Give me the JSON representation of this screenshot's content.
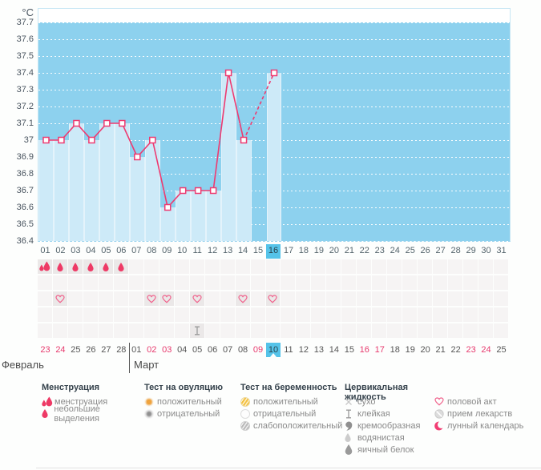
{
  "unit_label": "°C",
  "axis_ticks": [
    "37.7",
    "37.6",
    "37.5",
    "37.4",
    "37.3",
    "37.2",
    "37.1",
    "37",
    "36.9",
    "36.8",
    "36.7",
    "36.6",
    "36.5",
    "36.4"
  ],
  "colors": {
    "chart_blue": "#8dd1ee",
    "bar_blue": "#cdeaf8",
    "selected_blue": "#55c3e9",
    "line_pink": "#ee3a70",
    "weekend_pink": "#e73a6e",
    "heart_pink": "#f0618b",
    "drop_pink": "#ee3a66",
    "gray_icon": "#9a9a9a"
  },
  "chart_data": {
    "type": "line",
    "ylabel": "°C",
    "ylim": [
      36.4,
      37.7
    ],
    "y_step": 0.1,
    "grid": "horizontal-dotted",
    "x_labels": [
      "01",
      "02",
      "03",
      "04",
      "05",
      "06",
      "07",
      "08",
      "09",
      "10",
      "11",
      "12",
      "13",
      "14",
      "15",
      "16",
      "17",
      "18",
      "19",
      "20",
      "21",
      "22",
      "23",
      "24",
      "25",
      "26",
      "27",
      "28",
      "29",
      "30",
      "31"
    ],
    "series": [
      {
        "name": "measured-temperature",
        "style": "solid",
        "points": [
          [
            1,
            37.0
          ],
          [
            2,
            37.0
          ],
          [
            3,
            37.1
          ],
          [
            4,
            37.0
          ],
          [
            5,
            37.1
          ],
          [
            6,
            37.1
          ],
          [
            7,
            36.9
          ],
          [
            8,
            37.0
          ],
          [
            9,
            36.6
          ],
          [
            10,
            36.7
          ],
          [
            11,
            36.7
          ],
          [
            12,
            36.7
          ],
          [
            13,
            37.4
          ],
          [
            14,
            37.0
          ]
        ]
      },
      {
        "name": "projected-temperature",
        "style": "dashed",
        "points": [
          [
            14,
            37.0
          ],
          [
            16,
            37.4
          ]
        ]
      }
    ],
    "selected_day": 16
  },
  "symbol_rows": [
    {
      "name": "menstruation",
      "cells": {
        "1": "drop-heavy",
        "2": "drop-light",
        "3": "drop-light",
        "4": "drop-light",
        "5": "drop-light",
        "6": "drop-light"
      }
    },
    {
      "name": "ovulation-tests",
      "cells": {}
    },
    {
      "name": "intercourse",
      "cells": {
        "2": "heart",
        "8": "heart",
        "9": "heart",
        "11": "heart",
        "14": "heart",
        "16": "heart"
      }
    },
    {
      "name": "pregnancy-tests",
      "cells": {}
    },
    {
      "name": "cervical-fluid",
      "cells": {
        "11": "sticky"
      }
    }
  ],
  "calendar": {
    "months": [
      {
        "name": "Февраль"
      },
      {
        "name": "Март"
      }
    ],
    "dates": [
      {
        "d": "23",
        "m": 0,
        "weekend": true
      },
      {
        "d": "24",
        "m": 0,
        "weekend": true
      },
      {
        "d": "25",
        "m": 0
      },
      {
        "d": "26",
        "m": 0
      },
      {
        "d": "27",
        "m": 0
      },
      {
        "d": "28",
        "m": 0
      },
      {
        "d": "01",
        "m": 1
      },
      {
        "d": "02",
        "m": 1,
        "weekend": true
      },
      {
        "d": "03",
        "m": 1,
        "weekend": true
      },
      {
        "d": "04",
        "m": 1
      },
      {
        "d": "05",
        "m": 1
      },
      {
        "d": "06",
        "m": 1
      },
      {
        "d": "07",
        "m": 1
      },
      {
        "d": "08",
        "m": 1
      },
      {
        "d": "09",
        "m": 1,
        "weekend": true
      },
      {
        "d": "10",
        "m": 1,
        "today": true
      },
      {
        "d": "11",
        "m": 1
      },
      {
        "d": "12",
        "m": 1
      },
      {
        "d": "13",
        "m": 1
      },
      {
        "d": "14",
        "m": 1
      },
      {
        "d": "15",
        "m": 1
      },
      {
        "d": "16",
        "m": 1,
        "weekend": true
      },
      {
        "d": "17",
        "m": 1,
        "weekend": true
      },
      {
        "d": "18",
        "m": 1
      },
      {
        "d": "19",
        "m": 1
      },
      {
        "d": "20",
        "m": 1
      },
      {
        "d": "21",
        "m": 1
      },
      {
        "d": "22",
        "m": 1
      },
      {
        "d": "23",
        "m": 1,
        "weekend": true
      },
      {
        "d": "24",
        "m": 1,
        "weekend": true
      },
      {
        "d": "25",
        "m": 1
      }
    ]
  },
  "legend": {
    "groups": [
      {
        "title": "Менструация",
        "items": [
          {
            "icon": "drop-heavy",
            "label": "менструация"
          },
          {
            "icon": "drop-light",
            "label": "небольшие выделения"
          }
        ]
      },
      {
        "title": "Тест на овуляцию",
        "items": [
          {
            "icon": "ovul-pos",
            "label": "положительный"
          },
          {
            "icon": "ovul-neg",
            "label": "отрицательный"
          }
        ]
      },
      {
        "title": "Тест на беременность",
        "items": [
          {
            "icon": "preg-pos",
            "label": "положительный"
          },
          {
            "icon": "preg-neg",
            "label": "отрицательный"
          },
          {
            "icon": "preg-weak",
            "label": "слабоположительный"
          }
        ]
      },
      {
        "title": "Цервикальная жидкость",
        "items": [
          {
            "icon": "dry",
            "label": "сухо"
          },
          {
            "icon": "sticky",
            "label": "клейкая"
          },
          {
            "icon": "creamy",
            "label": "кремообразная"
          },
          {
            "icon": "watery",
            "label": "водянистая"
          },
          {
            "icon": "eggwhite",
            "label": "яичный белок"
          }
        ]
      },
      {
        "title": "",
        "items": [
          {
            "icon": "heart",
            "label": "половой акт"
          },
          {
            "icon": "pill",
            "label": "прием лекарств"
          },
          {
            "icon": "moon",
            "label": "лунный календарь"
          }
        ]
      }
    ]
  }
}
